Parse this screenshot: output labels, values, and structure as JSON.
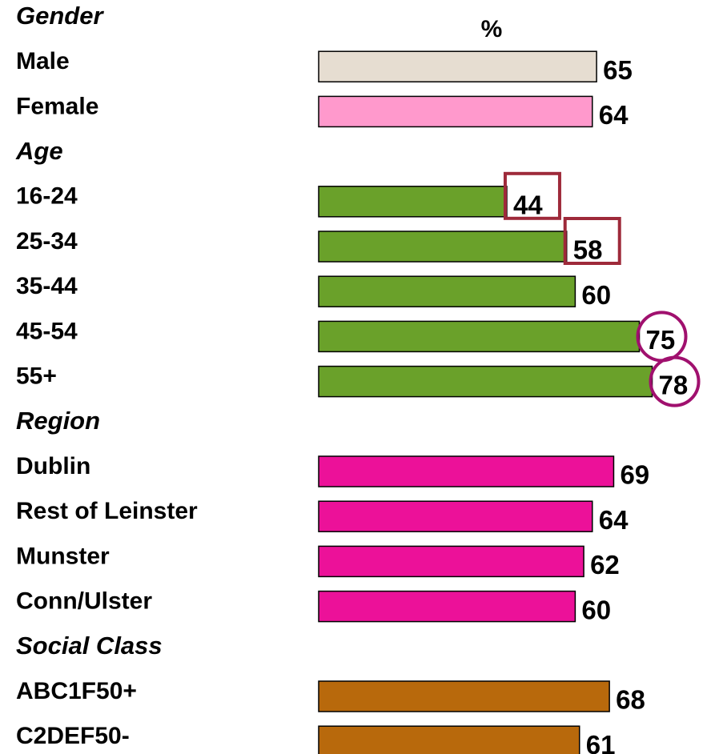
{
  "chart_data": {
    "type": "bar",
    "unit_label": "%",
    "groups": [
      {
        "name": "Gender",
        "categories": [
          "Male",
          "Female"
        ],
        "values": [
          65,
          64
        ],
        "colors": [
          "#e6ddd1",
          "#ff99cc"
        ]
      },
      {
        "name": "Age",
        "categories": [
          "16-24",
          "25-34",
          "35-44",
          "45-54",
          "55+"
        ],
        "values": [
          44,
          58,
          60,
          75,
          78
        ],
        "colors": [
          "#6aa12a",
          "#6aa12a",
          "#6aa12a",
          "#6aa12a",
          "#6aa12a"
        ],
        "highlight": [
          "box",
          "box",
          null,
          "circle",
          "circle"
        ]
      },
      {
        "name": "Region",
        "categories": [
          "Dublin",
          "Rest of Leinster",
          "Munster",
          "Conn/Ulster"
        ],
        "values": [
          69,
          64,
          62,
          60
        ],
        "colors": [
          "#ec1199",
          "#ec1199",
          "#ec1199",
          "#ec1199"
        ]
      },
      {
        "name": "Social Class",
        "categories": [
          "ABC1F50+",
          "C2DEF50-"
        ],
        "values": [
          68,
          61
        ],
        "colors": [
          "#b8690c",
          "#b8690c"
        ]
      }
    ],
    "box_color": "#9e2a3a",
    "circle_color": "#a0106e",
    "header_color": "#9e2a3a"
  }
}
